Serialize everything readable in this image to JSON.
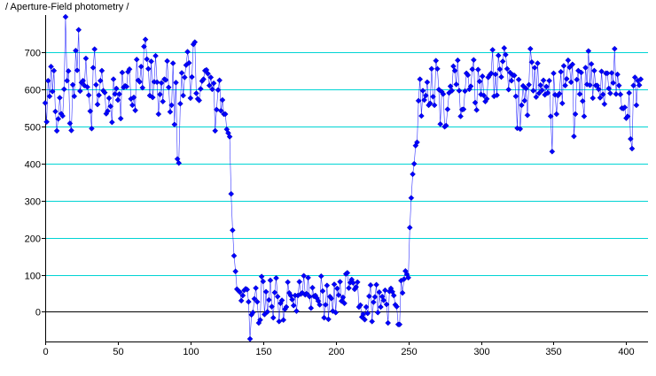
{
  "chart_data": {
    "type": "scatter",
    "title": "/ Aperture-Field photometry /",
    "xlabel": "",
    "ylabel": "",
    "xlim": [
      0,
      415
    ],
    "ylim": [
      -80,
      800
    ],
    "x_ticks": [
      0,
      50,
      100,
      150,
      200,
      250,
      300,
      350,
      400
    ],
    "y_ticks": [
      0,
      100,
      200,
      300,
      400,
      500,
      600,
      700
    ],
    "gridlines_y": [
      100,
      200,
      300,
      400,
      500,
      600,
      700
    ],
    "grid": "horizontal",
    "legend": "none",
    "series": [
      {
        "marker": "diamond",
        "connected": true,
        "x_start": 0,
        "x_step": 1,
        "values": [
          563,
          512,
          623,
          581,
          661,
          594,
          650,
          540,
          488,
          520,
          577,
          534,
          528,
          600,
          795,
          623,
          649,
          508,
          489,
          612,
          581,
          704,
          651,
          760,
          595,
          618,
          623,
          610,
          683,
          606,
          584,
          541,
          494,
          658,
          708,
          612,
          559,
          584,
          623,
          650,
          596,
          591,
          534,
          541,
          576,
          554,
          511,
          627,
          587,
          602,
          571,
          587,
          521,
          645,
          605,
          609,
          607,
          647,
          654,
          574,
          557,
          578,
          543,
          680,
          624,
          620,
          661,
          604,
          715,
          734,
          681,
          655,
          583,
          675,
          578,
          620,
          690,
          619,
          533,
          586,
          617,
          567,
          627,
          625,
          676,
          605,
          539,
          557,
          670,
          505,
          618,
          412,
          401,
          561,
          644,
          583,
          632,
          665,
          701,
          671,
          576,
          633,
          721,
          727,
          589,
          574,
          570,
          601,
          622,
          627,
          650,
          652,
          642,
          610,
          632,
          600,
          616,
          488,
          545,
          598,
          624,
          542,
          571,
          533,
          533,
          492,
          482,
          472,
          318,
          220,
          151,
          109,
          61,
          57,
          53,
          30,
          44,
          58,
          62,
          60,
          27,
          -73,
          -8,
          -2,
          35,
          64,
          27,
          -30,
          -22,
          95,
          82,
          -7,
          54,
          0,
          32,
          85,
          14,
          -16,
          52,
          91,
          41,
          -26,
          23,
          31,
          -22,
          7,
          13,
          80,
          51,
          44,
          33,
          17,
          44,
          2,
          44,
          81,
          48,
          51,
          97,
          46,
          49,
          92,
          41,
          10,
          65,
          42,
          44,
          37,
          29,
          19,
          96,
          56,
          -16,
          19,
          71,
          -20,
          41,
          36,
          2,
          74,
          -2,
          63,
          45,
          81,
          29,
          39,
          23,
          102,
          105,
          64,
          79,
          87,
          78,
          61,
          67,
          80,
          13,
          18,
          -14,
          -6,
          -21,
          13,
          -4,
          42,
          72,
          -26,
          26,
          40,
          73,
          -2,
          53,
          13,
          41,
          31,
          58,
          20,
          -30,
          55,
          63,
          54,
          44,
          19,
          14,
          -34,
          -34,
          84,
          51,
          88,
          110,
          101,
          92,
          227,
          307,
          371,
          399,
          448,
          457,
          569,
          627,
          528,
          596,
          571,
          583,
          619,
          557,
          562,
          655,
          580,
          557,
          677,
          655,
          599,
          506,
          593,
          587,
          499,
          502,
          546,
          590,
          608,
          596,
          662,
          650,
          613,
          678,
          596,
          527,
          545,
          546,
          595,
          643,
          638,
          600,
          608,
          654,
          679,
          564,
          544,
          653,
          621,
          586,
          635,
          583,
          567,
          574,
          632,
          638,
          643,
          706,
          581,
          640,
          584,
          691,
          654,
          633,
          675,
          711,
          693,
          655,
          599,
          645,
          623,
          638,
          637,
          581,
          495,
          626,
          493,
          557,
          609,
          569,
          602,
          530,
          612,
          709,
          673,
          596,
          658,
          579,
          670,
          589,
          611,
          597,
          624,
          585,
          607,
          590,
          623,
          527,
          432,
          643,
          585,
          533,
          583,
          588,
          647,
          562,
          663,
          610,
          628,
          678,
          659,
          619,
          667,
          473,
          533,
          626,
          650,
          587,
          645,
          568,
          527,
          658,
          613,
          703,
          611,
          668,
          576,
          650,
          610,
          610,
          600,
          577,
          648,
          586,
          560,
          643,
          643,
          602,
          589,
          644,
          617,
          709,
          587,
          640,
          610,
          586,
          549,
          548,
          551,
          522,
          527,
          590,
          466,
          440,
          610,
          632,
          557,
          623,
          611,
          627
        ]
      }
    ]
  },
  "colors": {
    "series": "#0000ff",
    "grid": "#00d4d4",
    "axis": "#000000",
    "background": "#ffffff"
  }
}
